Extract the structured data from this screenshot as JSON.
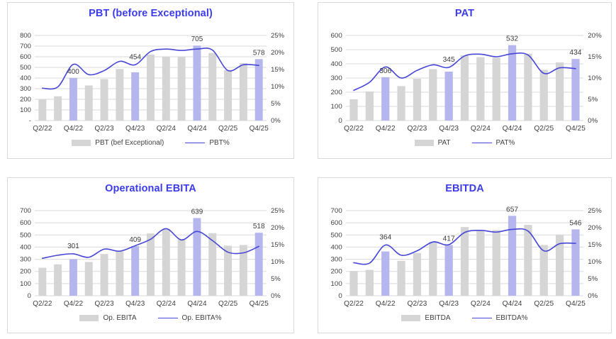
{
  "colors": {
    "title": "#3c3ceb",
    "bar": "#d5d5d5",
    "bar_highlight": "#b6b6ef",
    "line": "#4646d7",
    "grid": "#d9d9d9",
    "axis_text": "#404040",
    "data_label": "#3a3a3a",
    "panel_border": "#d9d9d9"
  },
  "chart_data": [
    {
      "id": "pbt",
      "type": "bar+line",
      "title": "PBT (before Exceptional)",
      "categories": [
        "Q2/22",
        "Q3/22",
        "Q4/22",
        "Q1/23",
        "Q2/23",
        "Q3/23",
        "Q4/23",
        "Q1/24",
        "Q2/24",
        "Q3/24",
        "Q4/24",
        "Q1/25",
        "Q2/25",
        "Q3/25",
        "Q4/25"
      ],
      "x_tick_labels": [
        "Q2/22",
        "Q4/22",
        "Q2/23",
        "Q4/23",
        "Q2/24",
        "Q4/24",
        "Q2/25",
        "Q4/25"
      ],
      "series": [
        {
          "name": "PBT (bef Exceptional)",
          "type": "bar",
          "axis": "left",
          "values": [
            200,
            228,
            400,
            330,
            390,
            485,
            454,
            620,
            600,
            598,
            705,
            635,
            475,
            540,
            578
          ]
        },
        {
          "name": "PBT%",
          "type": "line",
          "axis": "right",
          "values": [
            9.5,
            9.9,
            16.5,
            13.5,
            14.7,
            17.4,
            16.4,
            20.3,
            21.0,
            20.6,
            21.0,
            20.7,
            14.7,
            16.4,
            16.2
          ]
        }
      ],
      "highlighted_bar_indices": [
        2,
        6,
        10,
        14
      ],
      "bar_data_labels": {
        "2": "400",
        "6": "454",
        "10": "705",
        "14": "578"
      },
      "left_axis": {
        "min": 0,
        "max": 800,
        "step": 100,
        "zero_label": "-"
      },
      "right_axis": {
        "min": 0,
        "max": 25,
        "step": 5,
        "suffix": "%"
      },
      "grid": true,
      "legend_position": "bottom"
    },
    {
      "id": "pat",
      "type": "bar+line",
      "title": "PAT",
      "categories": [
        "Q2/22",
        "Q3/22",
        "Q4/22",
        "Q1/23",
        "Q2/23",
        "Q3/23",
        "Q4/23",
        "Q1/24",
        "Q2/24",
        "Q3/24",
        "Q4/24",
        "Q1/25",
        "Q2/25",
        "Q3/25",
        "Q4/25"
      ],
      "x_tick_labels": [
        "Q2/22",
        "Q4/22",
        "Q2/23",
        "Q4/23",
        "Q2/24",
        "Q4/24",
        "Q2/25",
        "Q4/25"
      ],
      "series": [
        {
          "name": "PAT",
          "type": "bar",
          "axis": "left",
          "values": [
            150,
            205,
            306,
            243,
            295,
            363,
            345,
            460,
            447,
            443,
            532,
            472,
            358,
            410,
            434
          ]
        },
        {
          "name": "PAT%",
          "type": "line",
          "axis": "right",
          "values": [
            7.1,
            9.0,
            12.6,
            10.0,
            11.8,
            13.1,
            12.5,
            15.2,
            15.6,
            15.0,
            15.7,
            15.4,
            11.1,
            12.4,
            12.2
          ]
        }
      ],
      "highlighted_bar_indices": [
        2,
        6,
        10,
        14
      ],
      "bar_data_labels": {
        "2": "306",
        "6": "345",
        "10": "532",
        "14": "434"
      },
      "left_axis": {
        "min": 0,
        "max": 600,
        "step": 100,
        "zero_label": "0"
      },
      "right_axis": {
        "min": 0,
        "max": 20,
        "step": 5,
        "suffix": "%"
      },
      "grid": true,
      "legend_position": "bottom"
    },
    {
      "id": "op-ebita",
      "type": "bar+line",
      "title": "Operational EBITA",
      "categories": [
        "Q2/22",
        "Q3/22",
        "Q4/22",
        "Q1/23",
        "Q2/23",
        "Q3/23",
        "Q4/23",
        "Q1/24",
        "Q2/24",
        "Q3/24",
        "Q4/24",
        "Q1/25",
        "Q2/25",
        "Q3/25",
        "Q4/25"
      ],
      "x_tick_labels": [
        "Q2/22",
        "Q4/22",
        "Q2/23",
        "Q4/23",
        "Q2/24",
        "Q4/24",
        "Q2/25",
        "Q4/25"
      ],
      "series": [
        {
          "name": "Op. EBITA",
          "type": "bar",
          "axis": "left",
          "values": [
            230,
            258,
            301,
            278,
            343,
            365,
            409,
            512,
            550,
            462,
            639,
            515,
            412,
            417,
            518
          ]
        },
        {
          "name": "Op. EBITA%",
          "type": "line",
          "axis": "right",
          "values": [
            11.0,
            11.9,
            12.3,
            11.3,
            13.7,
            13.1,
            14.7,
            16.6,
            19.7,
            16.4,
            18.9,
            16.2,
            12.8,
            12.6,
            14.5
          ]
        }
      ],
      "highlighted_bar_indices": [
        2,
        6,
        10,
        14
      ],
      "bar_data_labels": {
        "2": "301",
        "6": "409",
        "10": "639",
        "14": "518"
      },
      "left_axis": {
        "min": 0,
        "max": 700,
        "step": 100,
        "zero_label": "0"
      },
      "right_axis": {
        "min": 0,
        "max": 25,
        "step": 5,
        "suffix": "%"
      },
      "grid": true,
      "legend_position": "bottom"
    },
    {
      "id": "ebitda",
      "type": "bar+line",
      "title": "EBITDA",
      "categories": [
        "Q2/22",
        "Q3/22",
        "Q4/22",
        "Q1/23",
        "Q2/23",
        "Q3/23",
        "Q4/23",
        "Q1/24",
        "Q2/24",
        "Q3/24",
        "Q4/24",
        "Q1/25",
        "Q2/25",
        "Q3/25",
        "Q4/25"
      ],
      "x_tick_labels": [
        "Q2/22",
        "Q4/22",
        "Q2/23",
        "Q4/23",
        "Q2/24",
        "Q4/24",
        "Q2/25",
        "Q4/25"
      ],
      "series": [
        {
          "name": "EBITDA",
          "type": "bar",
          "axis": "left",
          "values": [
            203,
            213,
            364,
            287,
            352,
            445,
            417,
            565,
            537,
            540,
            657,
            583,
            417,
            502,
            546
          ]
        },
        {
          "name": "EBITDA%",
          "type": "line",
          "axis": "right",
          "values": [
            9.7,
            9.6,
            14.9,
            11.9,
            13.2,
            15.8,
            15.0,
            18.6,
            19.2,
            18.7,
            19.5,
            19.0,
            13.2,
            15.3,
            15.4
          ]
        }
      ],
      "highlighted_bar_indices": [
        2,
        6,
        10,
        14
      ],
      "bar_data_labels": {
        "2": "364",
        "6": "417",
        "10": "657",
        "14": "546"
      },
      "left_axis": {
        "min": 0,
        "max": 700,
        "step": 100,
        "zero_label": "0"
      },
      "right_axis": {
        "min": 0,
        "max": 25,
        "step": 5,
        "suffix": "%"
      },
      "grid": true,
      "legend_position": "bottom"
    }
  ]
}
